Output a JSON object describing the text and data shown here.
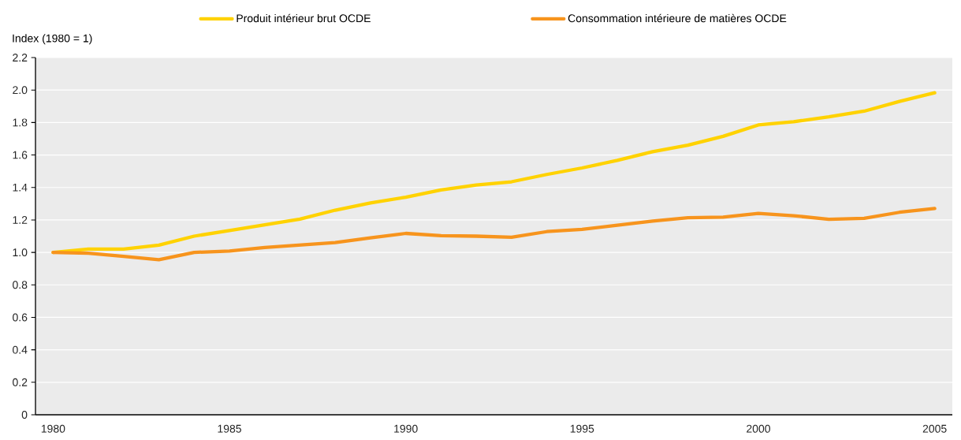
{
  "chart_data": {
    "type": "line",
    "ylabel": "Index (1980 = 1)",
    "categories": [
      "1980",
      null,
      null,
      null,
      null,
      "1985",
      null,
      null,
      null,
      null,
      "1990",
      null,
      null,
      null,
      null,
      "1995",
      null,
      null,
      null,
      null,
      "2000",
      null,
      null,
      null,
      null,
      "2005"
    ],
    "series": [
      {
        "name": "Produit intérieur brut OCDE",
        "color": "#ffd200",
        "values": [
          1.0,
          1.02,
          1.02,
          1.045,
          1.1,
          1.135,
          1.17,
          1.205,
          1.26,
          1.305,
          1.34,
          1.385,
          1.415,
          1.435,
          1.48,
          1.52,
          1.567,
          1.62,
          1.66,
          1.715,
          1.785,
          1.805,
          1.835,
          1.87,
          1.93,
          1.983
        ]
      },
      {
        "name": "Consommation intérieure de matières OCDE",
        "color": "#f7941d",
        "values": [
          1.0,
          0.995,
          0.975,
          0.955,
          1.0,
          1.008,
          1.03,
          1.045,
          1.06,
          1.09,
          1.117,
          1.103,
          1.1,
          1.093,
          1.128,
          1.142,
          1.167,
          1.193,
          1.213,
          1.217,
          1.24,
          1.226,
          1.204,
          1.21,
          1.247,
          1.27
        ]
      }
    ],
    "ylim": [
      0,
      2.2
    ],
    "yticks": [
      0,
      {
        "value": 0.2,
        "label": "0.2"
      },
      {
        "value": 0.4,
        "label": "0.4"
      },
      {
        "value": 0.6,
        "label": "0.6"
      },
      {
        "value": 0.8,
        "label": "0.8"
      },
      {
        "value": 1.0,
        "label": "1.0"
      },
      {
        "value": 1.2,
        "label": "1.2"
      },
      {
        "value": 1.4,
        "label": "1.4"
      },
      {
        "value": 1.6,
        "label": "1.6"
      },
      {
        "value": 1.8,
        "label": "1.8"
      },
      {
        "value": 2.0,
        "label": "2.0"
      },
      {
        "value": 2.2,
        "label": "2.2"
      }
    ],
    "grid": "y",
    "legend": "top",
    "marker": "none",
    "line_style": "solid"
  }
}
